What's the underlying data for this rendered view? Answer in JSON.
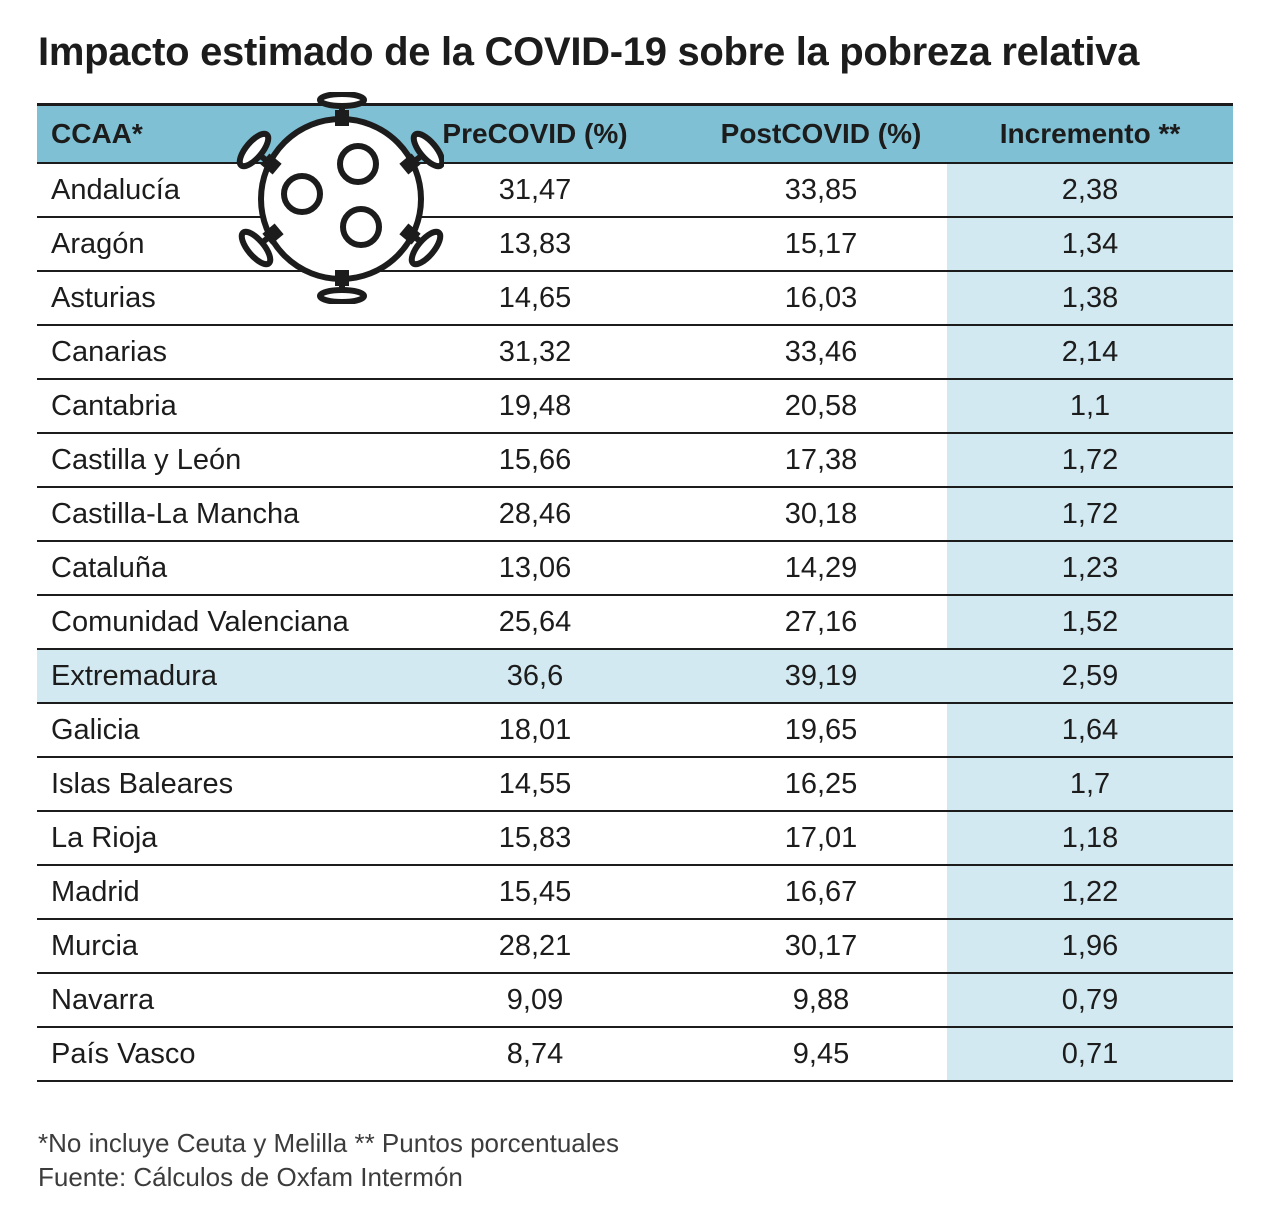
{
  "title": "Impacto estimado de la COVID-19 sobre la pobreza relativa",
  "icons": {
    "virus": "virus-icon"
  },
  "colors": {
    "header_bg": "#7fc0d4",
    "highlight_bg": "#d3e9f1",
    "text": "#1c1c1c"
  },
  "chart_data": {
    "type": "table",
    "columns": [
      "CCAA*",
      "PreCOVID (%)",
      "PostCOVID (%)",
      "Incremento **"
    ],
    "highlight_column": "Incremento **",
    "highlight_row": "Extremadura",
    "rows": [
      {
        "region": "Andalucía",
        "pre": "31,47",
        "post": "33,85",
        "inc": "2,38"
      },
      {
        "region": "Aragón",
        "pre": "13,83",
        "post": "15,17",
        "inc": "1,34"
      },
      {
        "region": "Asturias",
        "pre": "14,65",
        "post": "16,03",
        "inc": "1,38"
      },
      {
        "region": "Canarias",
        "pre": "31,32",
        "post": "33,46",
        "inc": "2,14"
      },
      {
        "region": "Cantabria",
        "pre": "19,48",
        "post": "20,58",
        "inc": "1,1"
      },
      {
        "region": "Castilla y León",
        "pre": "15,66",
        "post": "17,38",
        "inc": "1,72"
      },
      {
        "region": "Castilla-La Mancha",
        "pre": "28,46",
        "post": "30,18",
        "inc": "1,72"
      },
      {
        "region": "Cataluña",
        "pre": "13,06",
        "post": "14,29",
        "inc": "1,23"
      },
      {
        "region": "Comunidad Valenciana",
        "pre": "25,64",
        "post": "27,16",
        "inc": "1,52"
      },
      {
        "region": "Extremadura",
        "pre": "36,6",
        "post": "39,19",
        "inc": "2,59"
      },
      {
        "region": "Galicia",
        "pre": "18,01",
        "post": "19,65",
        "inc": "1,64"
      },
      {
        "region": "Islas Baleares",
        "pre": "14,55",
        "post": "16,25",
        "inc": "1,7"
      },
      {
        "region": "La Rioja",
        "pre": "15,83",
        "post": "17,01",
        "inc": "1,18"
      },
      {
        "region": "Madrid",
        "pre": "15,45",
        "post": "16,67",
        "inc": "1,22"
      },
      {
        "region": "Murcia",
        "pre": "28,21",
        "post": "30,17",
        "inc": "1,96"
      },
      {
        "region": "Navarra",
        "pre": "9,09",
        "post": "9,88",
        "inc": "0,79"
      },
      {
        "region": "País Vasco",
        "pre": "8,74",
        "post": "9,45",
        "inc": "0,71"
      }
    ]
  },
  "notes": {
    "line1": "*No incluye Ceuta y Melilla  ** Puntos porcentuales",
    "line2": "Fuente: Cálculos de Oxfam Intermón"
  }
}
